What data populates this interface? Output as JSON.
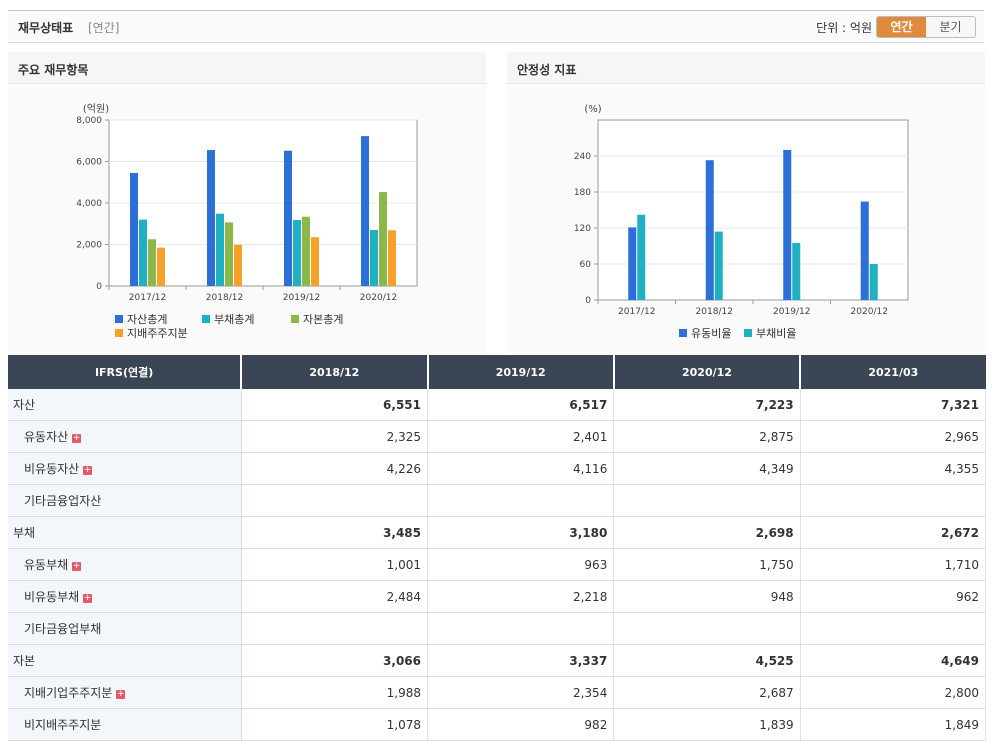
{
  "header": {
    "title": "재무상태표",
    "subtitle": "[연간]",
    "unit": "단위 : 억원",
    "toggle": [
      "연간",
      "분기"
    ],
    "toggle_active": 0
  },
  "colors": {
    "asset": "#2c6fd6",
    "debt": "#1fb0c2",
    "equity": "#8cb84a",
    "owner": "#f6a22a",
    "accent": "#e08a3e",
    "thead": "#3a4656"
  },
  "chart_data": [
    {
      "type": "bar",
      "title": "주요 재무항목",
      "ylabel": "(억원)",
      "categories": [
        "2017/12",
        "2018/12",
        "2019/12",
        "2020/12"
      ],
      "ylim": [
        0,
        8000
      ],
      "yticks": [
        "0",
        "2,000",
        "4,000",
        "6,000",
        "8,000"
      ],
      "series": [
        {
          "name": "자산총계",
          "values": [
            5450,
            6551,
            6517,
            7223
          ]
        },
        {
          "name": "부채총계",
          "values": [
            3200,
            3485,
            3180,
            2698
          ]
        },
        {
          "name": "자본총계",
          "values": [
            2250,
            3066,
            3337,
            4525
          ]
        },
        {
          "name": "지배주주지분",
          "values": [
            1850,
            1988,
            2354,
            2687
          ]
        }
      ],
      "legend": "bottom",
      "grid": true
    },
    {
      "type": "bar",
      "title": "안정성 지표",
      "ylabel": "(%)",
      "categories": [
        "2017/12",
        "2018/12",
        "2019/12",
        "2020/12"
      ],
      "ylim": [
        0,
        300
      ],
      "yticks": [
        "0",
        "60",
        "120",
        "180",
        "240"
      ],
      "series": [
        {
          "name": "유동비율",
          "values": [
            121,
            233,
            250,
            164
          ]
        },
        {
          "name": "부채비율",
          "values": [
            142,
            114,
            95,
            60
          ]
        }
      ],
      "legend": "bottom",
      "grid": true
    }
  ],
  "table": {
    "headers": [
      "IFRS(연결)",
      "2018/12",
      "2019/12",
      "2020/12",
      "2021/03"
    ],
    "rows": [
      {
        "label": "자산",
        "values": [
          "6,551",
          "6,517",
          "7,223",
          "7,321"
        ],
        "major": true,
        "plus": false
      },
      {
        "label": "유동자산",
        "values": [
          "2,325",
          "2,401",
          "2,875",
          "2,965"
        ],
        "major": false,
        "plus": true
      },
      {
        "label": "비유동자산",
        "values": [
          "4,226",
          "4,116",
          "4,349",
          "4,355"
        ],
        "major": false,
        "plus": true
      },
      {
        "label": "기타금융업자산",
        "values": [
          "",
          "",
          "",
          ""
        ],
        "major": false,
        "plus": false
      },
      {
        "label": "부채",
        "values": [
          "3,485",
          "3,180",
          "2,698",
          "2,672"
        ],
        "major": true,
        "plus": false
      },
      {
        "label": "유동부채",
        "values": [
          "1,001",
          "963",
          "1,750",
          "1,710"
        ],
        "major": false,
        "plus": true
      },
      {
        "label": "비유동부채",
        "values": [
          "2,484",
          "2,218",
          "948",
          "962"
        ],
        "major": false,
        "plus": true
      },
      {
        "label": "기타금융업부채",
        "values": [
          "",
          "",
          "",
          ""
        ],
        "major": false,
        "plus": false
      },
      {
        "label": "자본",
        "values": [
          "3,066",
          "3,337",
          "4,525",
          "4,649"
        ],
        "major": true,
        "plus": false
      },
      {
        "label": "지배기업주주지분",
        "values": [
          "1,988",
          "2,354",
          "2,687",
          "2,800"
        ],
        "major": false,
        "plus": true
      },
      {
        "label": "비지배주주지분",
        "values": [
          "1,078",
          "982",
          "1,839",
          "1,849"
        ],
        "major": false,
        "plus": false
      }
    ]
  }
}
